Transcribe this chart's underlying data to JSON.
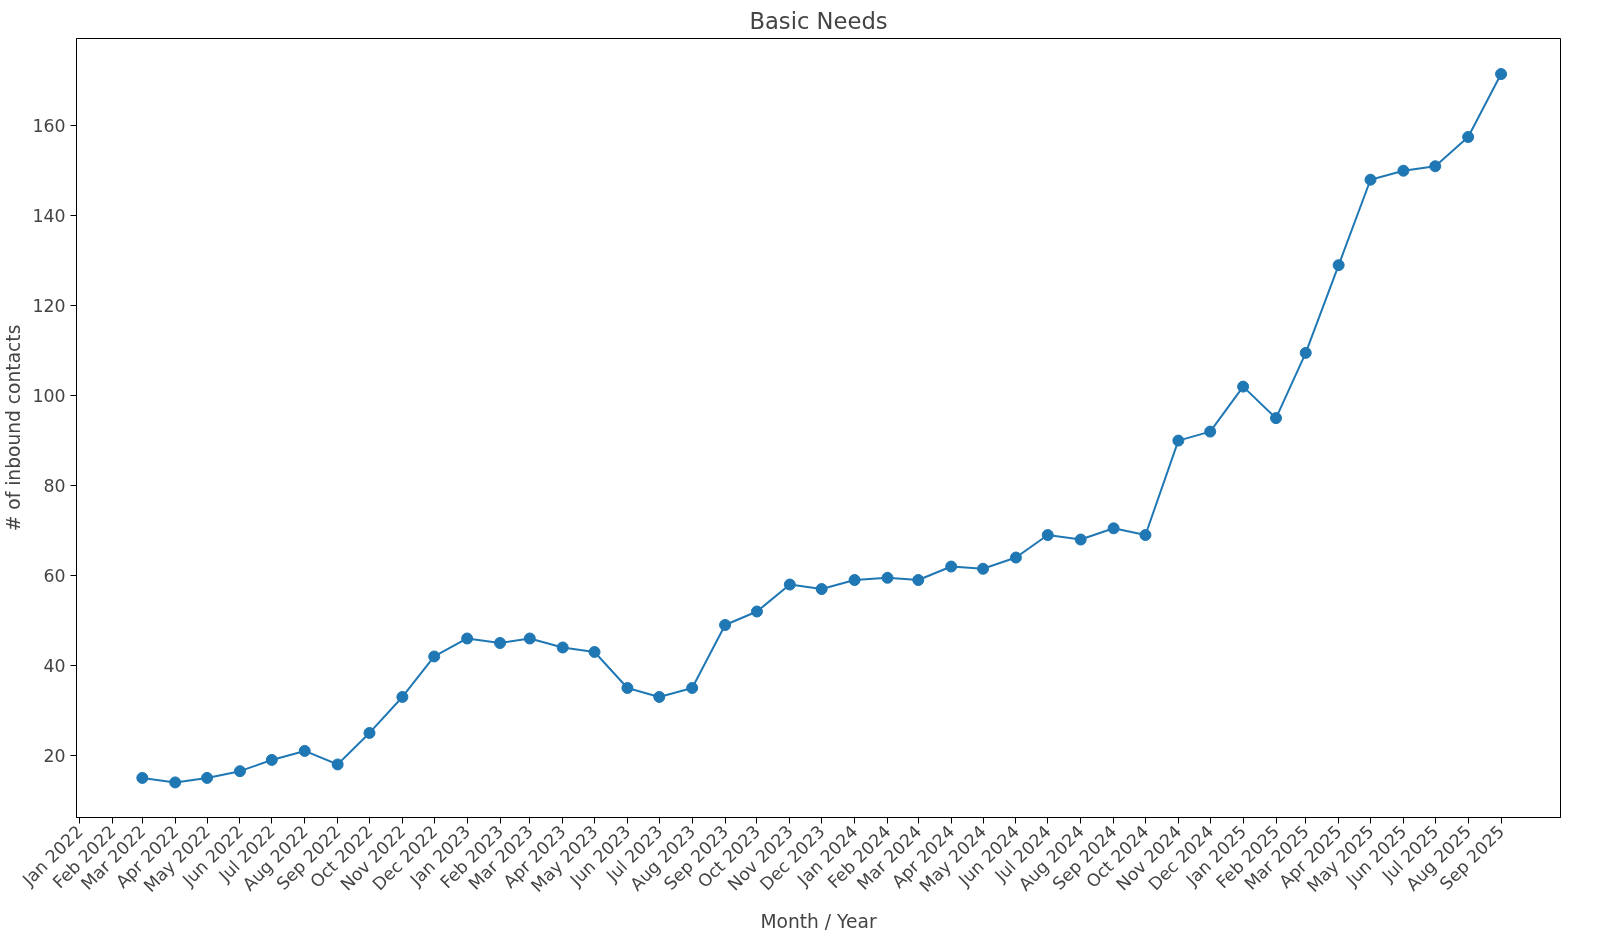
{
  "chart_data": {
    "type": "line",
    "title": "Basic Needs",
    "xlabel": "Month / Year",
    "ylabel": "# of inbound contacts",
    "x": [
      "2022-03",
      "2022-04",
      "2022-05",
      "2022-06",
      "2022-07",
      "2022-08",
      "2022-09",
      "2022-10",
      "2022-11",
      "2022-12",
      "2023-01",
      "2023-02",
      "2023-03",
      "2023-04",
      "2023-05",
      "2023-06",
      "2023-07",
      "2023-08",
      "2023-09",
      "2023-10",
      "2023-11",
      "2023-12",
      "2024-01",
      "2024-02",
      "2024-03",
      "2024-04",
      "2024-05",
      "2024-06",
      "2024-07",
      "2024-08",
      "2024-09",
      "2024-10",
      "2024-11",
      "2024-12",
      "2025-01",
      "2025-02",
      "2025-03",
      "2025-04",
      "2025-05",
      "2025-06",
      "2025-07",
      "2025-08",
      "2025-09"
    ],
    "series": [
      {
        "color": "#1f77b4",
        "values": [
          15,
          14,
          15,
          16.5,
          19,
          21,
          18,
          25,
          33,
          42,
          46,
          45,
          46,
          44,
          43,
          35,
          33,
          35,
          49,
          52,
          58,
          57,
          59,
          59.5,
          59,
          62,
          61.5,
          64,
          69,
          68,
          70.5,
          69,
          90,
          92,
          102,
          95,
          109.5,
          129,
          148,
          150,
          151,
          157.5,
          171.5
        ]
      }
    ],
    "xlim": [
      "2021-12-29",
      "2025-10-27"
    ],
    "ylim": [
      6.2,
      179.4
    ],
    "yticks": [
      20,
      40,
      60,
      80,
      100,
      120,
      140,
      160
    ],
    "xticks": [
      {
        "value": "2022-01",
        "label": "Jan 2022"
      },
      {
        "value": "2022-02",
        "label": "Feb 2022"
      },
      {
        "value": "2022-03",
        "label": "Mar 2022"
      },
      {
        "value": "2022-04",
        "label": "Apr 2022"
      },
      {
        "value": "2022-05",
        "label": "May 2022"
      },
      {
        "value": "2022-06",
        "label": "Jun 2022"
      },
      {
        "value": "2022-07",
        "label": "Jul 2022"
      },
      {
        "value": "2022-08",
        "label": "Aug 2022"
      },
      {
        "value": "2022-09",
        "label": "Sep 2022"
      },
      {
        "value": "2022-10",
        "label": "Oct 2022"
      },
      {
        "value": "2022-11",
        "label": "Nov 2022"
      },
      {
        "value": "2022-12",
        "label": "Dec 2022"
      },
      {
        "value": "2023-01",
        "label": "Jan 2023"
      },
      {
        "value": "2023-02",
        "label": "Feb 2023"
      },
      {
        "value": "2023-03",
        "label": "Mar 2023"
      },
      {
        "value": "2023-04",
        "label": "Apr 2023"
      },
      {
        "value": "2023-05",
        "label": "May 2023"
      },
      {
        "value": "2023-06",
        "label": "Jun 2023"
      },
      {
        "value": "2023-07",
        "label": "Jul 2023"
      },
      {
        "value": "2023-08",
        "label": "Aug 2023"
      },
      {
        "value": "2023-09",
        "label": "Sep 2023"
      },
      {
        "value": "2023-10",
        "label": "Oct 2023"
      },
      {
        "value": "2023-11",
        "label": "Nov 2023"
      },
      {
        "value": "2023-12",
        "label": "Dec 2023"
      },
      {
        "value": "2024-01",
        "label": "Jan 2024"
      },
      {
        "value": "2024-02",
        "label": "Feb 2024"
      },
      {
        "value": "2024-03",
        "label": "Mar 2024"
      },
      {
        "value": "2024-04",
        "label": "Apr 2024"
      },
      {
        "value": "2024-05",
        "label": "May 2024"
      },
      {
        "value": "2024-06",
        "label": "Jun 2024"
      },
      {
        "value": "2024-07",
        "label": "Jul 2024"
      },
      {
        "value": "2024-08",
        "label": "Aug 2024"
      },
      {
        "value": "2024-09",
        "label": "Sep 2024"
      },
      {
        "value": "2024-10",
        "label": "Oct 2024"
      },
      {
        "value": "2024-11",
        "label": "Nov 2024"
      },
      {
        "value": "2024-12",
        "label": "Dec 2024"
      },
      {
        "value": "2025-01",
        "label": "Jan 2025"
      },
      {
        "value": "2025-02",
        "label": "Feb 2025"
      },
      {
        "value": "2025-03",
        "label": "Mar 2025"
      },
      {
        "value": "2025-04",
        "label": "Apr 2025"
      },
      {
        "value": "2025-05",
        "label": "May 2025"
      },
      {
        "value": "2025-06",
        "label": "Jun 2025"
      },
      {
        "value": "2025-07",
        "label": "Jul 2025"
      },
      {
        "value": "2025-08",
        "label": "Aug 2025"
      },
      {
        "value": "2025-09",
        "label": "Sep 2025"
      }
    ],
    "marker": "circle",
    "line_style": "solid"
  }
}
